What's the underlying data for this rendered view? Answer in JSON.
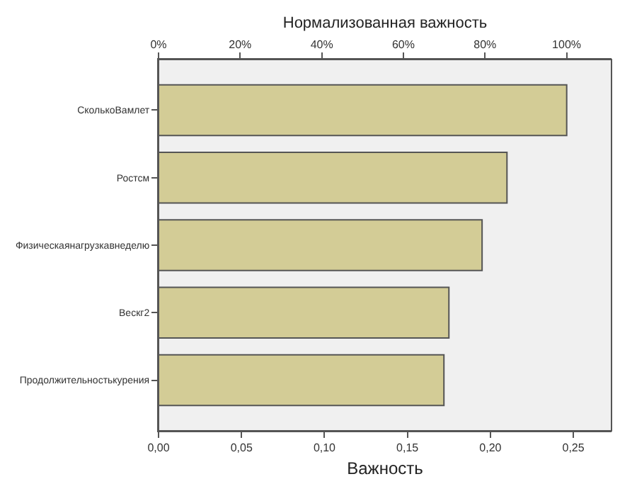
{
  "chart_data": {
    "type": "bar",
    "orientation": "horizontal",
    "categories": [
      "СколькоВамлет",
      "Ростсм",
      "Физическаянагрузкавнеделю",
      "Вескг2",
      "Продолжительностькурения"
    ],
    "values": [
      0.246,
      0.21,
      0.195,
      0.175,
      0.172
    ],
    "color": "#d3cc96",
    "xlabel": "Важность",
    "x2label": "Нормализованная важность",
    "xlim": [
      0,
      0.273
    ],
    "xticks": [
      {
        "value": 0,
        "label": "0,00"
      },
      {
        "value": 0.05,
        "label": "0,05"
      },
      {
        "value": 0.1,
        "label": "0,10"
      },
      {
        "value": 0.15,
        "label": "0,15"
      },
      {
        "value": 0.2,
        "label": "0,20"
      },
      {
        "value": 0.25,
        "label": "0,25"
      }
    ],
    "x2lim": [
      0,
      111
    ],
    "x2ticks": [
      {
        "value": 0,
        "label": "0%"
      },
      {
        "value": 20,
        "label": "20%"
      },
      {
        "value": 40,
        "label": "40%"
      },
      {
        "value": 60,
        "label": "60%"
      },
      {
        "value": 80,
        "label": "80%"
      },
      {
        "value": 100,
        "label": "100%"
      }
    ],
    "grid": false
  }
}
